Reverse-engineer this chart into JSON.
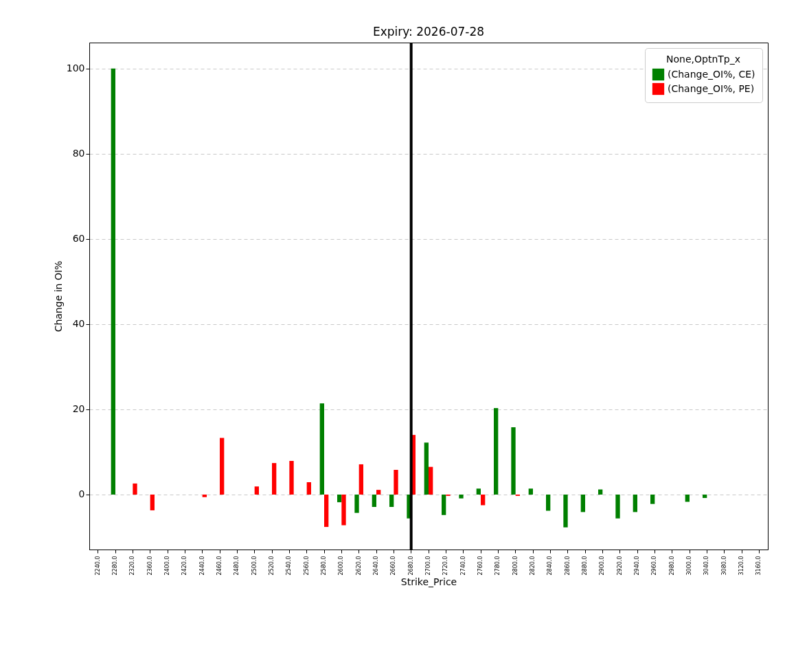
{
  "chart_data": {
    "type": "bar",
    "title": "Expiry: 2026-07-28",
    "xlabel": "Strike_Price",
    "ylabel": "Change in OI%",
    "legend_title": "None,OptnTp_x",
    "categories": [
      "2240.0",
      "2280.0",
      "2320.0",
      "2360.0",
      "2400.0",
      "2420.0",
      "2440.0",
      "2460.0",
      "2480.0",
      "2500.0",
      "2520.0",
      "2540.0",
      "2560.0",
      "2580.0",
      "2600.0",
      "2620.0",
      "2640.0",
      "2660.0",
      "2680.0",
      "2700.0",
      "2720.0",
      "2740.0",
      "2760.0",
      "2780.0",
      "2800.0",
      "2820.0",
      "2840.0",
      "2860.0",
      "2880.0",
      "2900.0",
      "2920.0",
      "2940.0",
      "2960.0",
      "2980.0",
      "3000.0",
      "3040.0",
      "3080.0",
      "3120.0",
      "3160.0"
    ],
    "series": [
      {
        "name": "(Change_OI%, CE)",
        "color": "#008000",
        "values": [
          null,
          100,
          null,
          null,
          null,
          null,
          null,
          null,
          null,
          null,
          null,
          null,
          null,
          21.4,
          -1.8,
          -4.3,
          -2.9,
          -2.9,
          -5.6,
          12.2,
          -4.8,
          -0.9,
          1.4,
          20.3,
          15.8,
          1.4,
          -3.8,
          -7.7,
          -4.1,
          1.2,
          -5.6,
          -4.1,
          -2.2,
          null,
          -1.7,
          -0.8,
          null,
          null,
          null
        ]
      },
      {
        "name": "(Change_OI%, PE)",
        "color": "#ff0000",
        "values": [
          null,
          null,
          2.6,
          -3.7,
          null,
          null,
          -0.6,
          13.3,
          null,
          1.9,
          7.4,
          7.9,
          2.9,
          -7.6,
          -7.2,
          7.1,
          1.1,
          5.8,
          14.0,
          6.5,
          -0.3,
          null,
          -2.5,
          null,
          -0.3,
          null,
          null,
          null,
          null,
          null,
          null,
          null,
          null,
          null,
          null,
          null,
          null,
          null,
          null
        ]
      }
    ],
    "ylim": [
      -12.9,
      106.1
    ],
    "yticks": [
      0,
      20,
      40,
      60,
      80,
      100
    ],
    "grid": "y",
    "legend": "top right",
    "ref_lines": [
      {
        "axis": "x",
        "value": "2680.0",
        "color": "#000000",
        "line_style": "solid"
      }
    ]
  }
}
